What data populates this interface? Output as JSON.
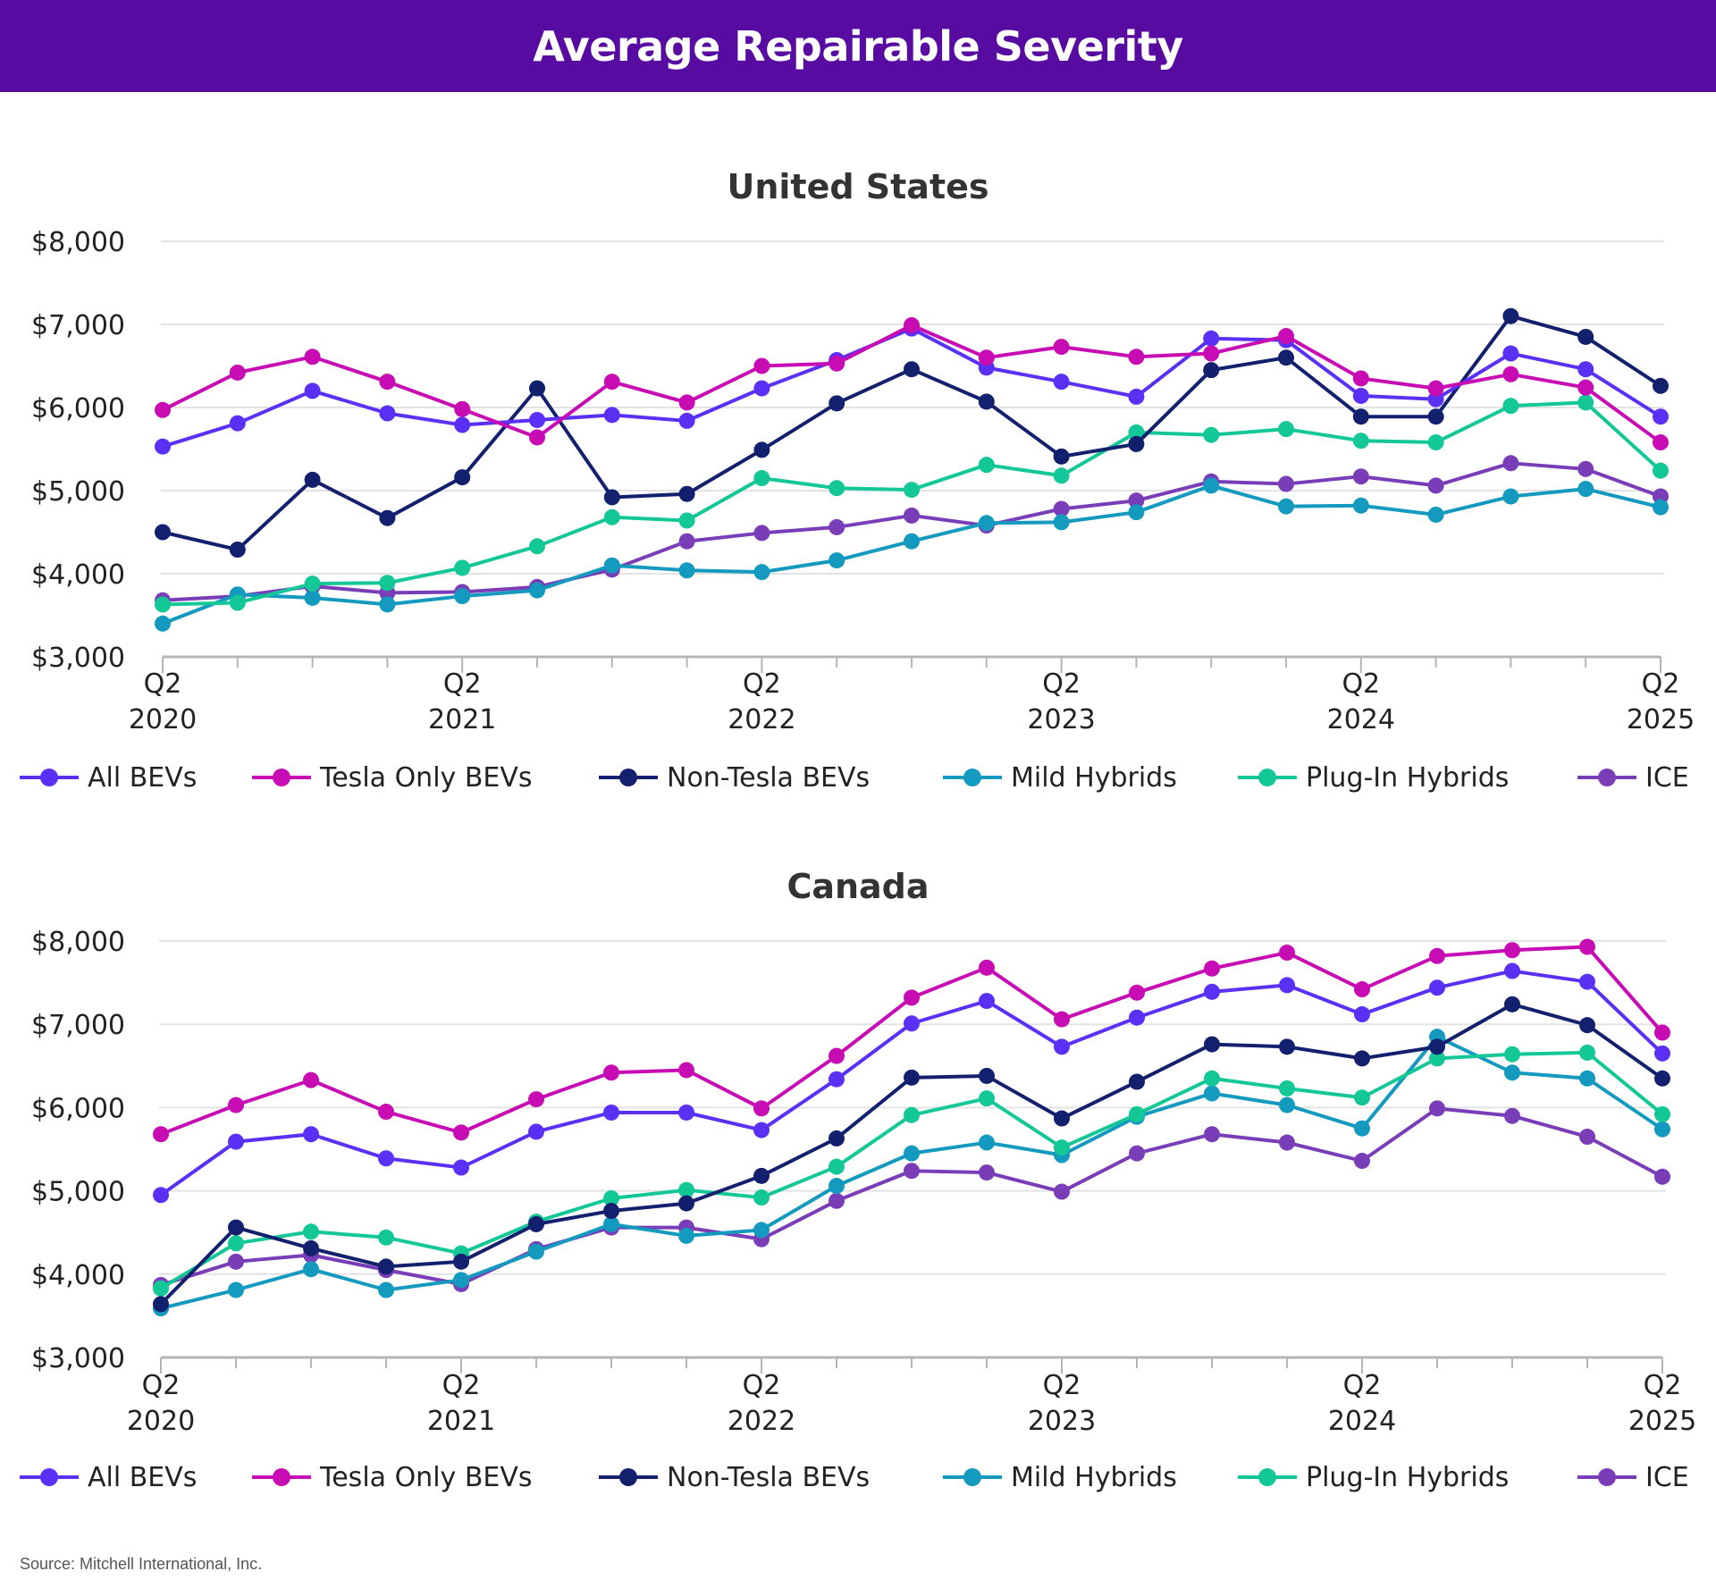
{
  "header": {
    "title": "Average Repairable Severity"
  },
  "source": "Source: Mitchell International, Inc.",
  "colors": {
    "header_bg": "#570ba0",
    "All BEVs": "#5a31f4",
    "Tesla Only BEVs": "#c70cb4",
    "Non-Tesla BEVs": "#13206e",
    "Mild Hybrids": "#1499bf",
    "Plug-In Hybrids": "#14c796",
    "ICE": "#7a3db8"
  },
  "chart_data": [
    {
      "type": "line",
      "title": "United States",
      "xlabel": "",
      "ylabel": "",
      "ylim": [
        3000,
        8000
      ],
      "y_ticks": [
        3000,
        4000,
        5000,
        6000,
        7000,
        8000
      ],
      "y_tick_labels": [
        "$3,000",
        "$4,000",
        "$5,000",
        "$6,000",
        "$7,000",
        "$8,000"
      ],
      "x_tick_labels": [
        {
          "index": 0,
          "q": "Q2",
          "year": "2020"
        },
        {
          "index": 4,
          "q": "Q2",
          "year": "2021"
        },
        {
          "index": 8,
          "q": "Q2",
          "year": "2022"
        },
        {
          "index": 12,
          "q": "Q2",
          "year": "2023"
        },
        {
          "index": 16,
          "q": "Q2",
          "year": "2024"
        },
        {
          "index": 20,
          "q": "Q2",
          "year": "2025"
        }
      ],
      "num_points": 21,
      "legend": [
        "All BEVs",
        "Tesla Only BEVs",
        "Non-Tesla BEVs",
        "Mild Hybrids",
        "Plug-In Hybrids",
        "ICE"
      ],
      "series": [
        {
          "name": "ICE",
          "values": [
            3680,
            3730,
            3850,
            3770,
            3780,
            3840,
            4050,
            4390,
            4490,
            4560,
            4700,
            4580,
            4780,
            4880,
            5110,
            5080,
            5170,
            5060,
            5330,
            5260,
            4930
          ]
        },
        {
          "name": "Mild Hybrids",
          "values": [
            3400,
            3750,
            3710,
            3630,
            3730,
            3800,
            4100,
            4040,
            4020,
            4160,
            4390,
            4610,
            4620,
            4740,
            5060,
            4810,
            4820,
            4710,
            4930,
            5020,
            4800
          ]
        },
        {
          "name": "Plug-In Hybrids",
          "values": [
            3630,
            3650,
            3880,
            3890,
            4070,
            4330,
            4680,
            4640,
            5150,
            5030,
            5010,
            5310,
            5180,
            5700,
            5670,
            5740,
            5600,
            5580,
            6020,
            6060,
            5240
          ]
        },
        {
          "name": "Non-Tesla BEVs",
          "values": [
            4500,
            4290,
            5130,
            4670,
            5160,
            6230,
            4920,
            4960,
            5490,
            6050,
            6460,
            6070,
            5410,
            5560,
            6450,
            6600,
            5890,
            5890,
            7100,
            6850,
            6260
          ]
        },
        {
          "name": "All BEVs",
          "values": [
            5530,
            5810,
            6200,
            5930,
            5790,
            5850,
            5910,
            5840,
            6230,
            6570,
            6950,
            6480,
            6310,
            6130,
            6830,
            6810,
            6140,
            6100,
            6650,
            6460,
            5890
          ]
        },
        {
          "name": "Tesla Only BEVs",
          "values": [
            5970,
            6420,
            6610,
            6310,
            5980,
            5640,
            6310,
            6060,
            6500,
            6530,
            6990,
            6600,
            6730,
            6610,
            6650,
            6860,
            6350,
            6230,
            6400,
            6240,
            5580
          ]
        }
      ]
    },
    {
      "type": "line",
      "title": "Canada",
      "xlabel": "",
      "ylabel": "",
      "ylim": [
        3000,
        8000
      ],
      "y_ticks": [
        3000,
        4000,
        5000,
        6000,
        7000,
        8000
      ],
      "y_tick_labels": [
        "$3,000",
        "$4,000",
        "$5,000",
        "$6,000",
        "$7,000",
        "$8,000"
      ],
      "x_tick_labels": [
        {
          "index": 0,
          "q": "Q2",
          "year": "2020"
        },
        {
          "index": 4,
          "q": "Q2",
          "year": "2021"
        },
        {
          "index": 8,
          "q": "Q2",
          "year": "2022"
        },
        {
          "index": 12,
          "q": "Q2",
          "year": "2023"
        },
        {
          "index": 16,
          "q": "Q2",
          "year": "2024"
        },
        {
          "index": 20,
          "q": "Q2",
          "year": "2025"
        }
      ],
      "num_points": 21,
      "legend": [
        "All BEVs",
        "Tesla Only BEVs",
        "Non-Tesla BEVs",
        "Mild Hybrids",
        "Plug-In Hybrids",
        "ICE"
      ],
      "series": [
        {
          "name": "ICE",
          "values": [
            3870,
            4150,
            4230,
            4050,
            3880,
            4300,
            4560,
            4560,
            4420,
            4880,
            5240,
            5220,
            4990,
            5450,
            5680,
            5580,
            5360,
            5990,
            5900,
            5650,
            5170
          ]
        },
        {
          "name": "Mild Hybrids",
          "values": [
            3590,
            3810,
            4060,
            3810,
            3930,
            4270,
            4600,
            4460,
            4530,
            5060,
            5450,
            5580,
            5430,
            5890,
            6170,
            6030,
            5750,
            6850,
            6420,
            6350,
            5740
          ]
        },
        {
          "name": "Plug-In Hybrids",
          "values": [
            3830,
            4370,
            4510,
            4440,
            4250,
            4630,
            4910,
            5010,
            4920,
            5290,
            5910,
            6110,
            5520,
            5920,
            6350,
            6230,
            6120,
            6590,
            6640,
            6660,
            5920
          ]
        },
        {
          "name": "Non-Tesla BEVs",
          "values": [
            3640,
            4560,
            4310,
            4090,
            4150,
            4600,
            4760,
            4850,
            5180,
            5630,
            6360,
            6380,
            5870,
            6310,
            6760,
            6730,
            6590,
            6730,
            7240,
            6990,
            6350
          ]
        },
        {
          "name": "All BEVs",
          "values": [
            4950,
            5590,
            5680,
            5390,
            5280,
            5710,
            5940,
            5940,
            5730,
            6340,
            7010,
            7280,
            6730,
            7080,
            7390,
            7470,
            7120,
            7440,
            7640,
            7510,
            6650
          ]
        },
        {
          "name": "Tesla Only BEVs",
          "values": [
            5680,
            6030,
            6330,
            5950,
            5700,
            6100,
            6420,
            6450,
            5990,
            6620,
            7320,
            7680,
            7060,
            7380,
            7670,
            7860,
            7420,
            7820,
            7890,
            7930,
            6900
          ]
        }
      ]
    }
  ]
}
